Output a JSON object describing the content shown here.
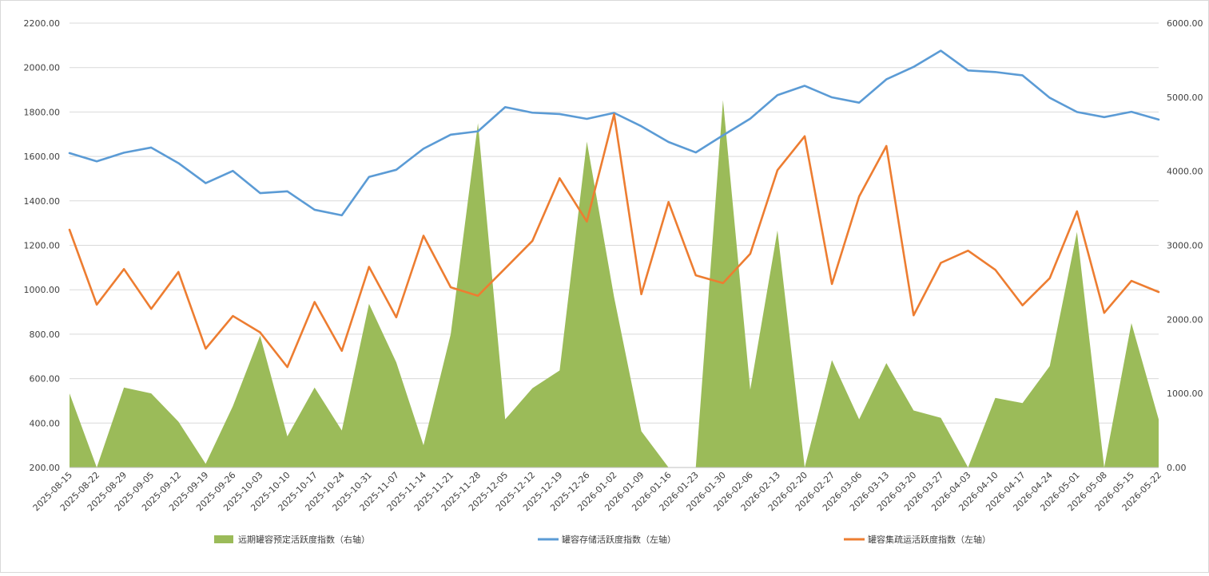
{
  "chart_data": {
    "type": "combo",
    "title": "",
    "categories": [
      "2025-08-15",
      "2025-08-22",
      "2025-08-29",
      "2025-09-05",
      "2025-09-12",
      "2025-09-19",
      "2025-09-26",
      "2025-10-03",
      "2025-10-10",
      "2025-10-17",
      "2025-10-24",
      "2025-10-31",
      "2025-11-07",
      "2025-11-14",
      "2025-11-21",
      "2025-11-28",
      "2025-12-05",
      "2025-12-12",
      "2025-12-19",
      "2025-12-26",
      "2026-01-02",
      "2026-01-09",
      "2026-01-16",
      "2026-01-23",
      "2026-01-30",
      "2026-02-06",
      "2026-02-13",
      "2026-02-20",
      "2026-02-27",
      "2026-03-06",
      "2026-03-13",
      "2026-03-20",
      "2026-03-27",
      "2026-04-03",
      "2026-04-10",
      "2026-04-17",
      "2026-04-24",
      "2026-05-01",
      "2026-05-08",
      "2026-05-15",
      "2026-05-22"
    ],
    "y_left": {
      "min": 200,
      "max": 2200,
      "ticks": [
        "200.00",
        "400.00",
        "600.00",
        "800.00",
        "1000.00",
        "1200.00",
        "1400.00",
        "1600.00",
        "1800.00",
        "2000.00",
        "2200.00"
      ]
    },
    "y_right": {
      "min": 0,
      "max": 6000,
      "ticks": [
        "0.00",
        "1000.00",
        "2000.00",
        "3000.00",
        "4000.00",
        "5000.00",
        "6000.00"
      ]
    },
    "grid": true,
    "legend_position": "bottom",
    "series": [
      {
        "name": "远期罐容预定活跃度指数（右轴）",
        "kind": "area",
        "axis": "right",
        "color": "#9BBB59",
        "values": [
          1000,
          0,
          1080,
          1000,
          620,
          50,
          830,
          1780,
          420,
          1080,
          500,
          2210,
          1420,
          300,
          1800,
          4650,
          650,
          1070,
          1310,
          4400,
          2300,
          490,
          0,
          0,
          4960,
          1050,
          3200,
          0,
          1450,
          650,
          1410,
          770,
          670,
          0,
          940,
          870,
          1370,
          3180,
          0,
          1950,
          650
        ]
      },
      {
        "name": "罐容存储活跃度指数（左轴）",
        "kind": "line",
        "axis": "left",
        "color": "#5B9BD5",
        "values": [
          1615,
          1578,
          1617,
          1640,
          1570,
          1480,
          1535,
          1435,
          1443,
          1360,
          1335,
          1508,
          1540,
          1635,
          1698,
          1713,
          1822,
          1797,
          1791,
          1769,
          1796,
          1736,
          1665,
          1618,
          1695,
          1770,
          1876,
          1918,
          1866,
          1842,
          1947,
          2003,
          2076,
          1987,
          1980,
          1965,
          1864,
          1800,
          1777,
          1801,
          1766
        ]
      },
      {
        "name": "罐容集疏运活跃度指数（左轴）",
        "kind": "line",
        "axis": "left",
        "color": "#ED7D31",
        "values": [
          1270,
          933,
          1093,
          914,
          1080,
          735,
          882,
          808,
          652,
          945,
          725,
          1103,
          876,
          1243,
          1011,
          973,
          1096,
          1220,
          1502,
          1307,
          1790,
          980,
          1395,
          1065,
          1030,
          1162,
          1538,
          1691,
          1026,
          1420,
          1647,
          885,
          1121,
          1176,
          1090,
          930,
          1052,
          1353,
          896,
          1040,
          990
        ]
      }
    ]
  }
}
